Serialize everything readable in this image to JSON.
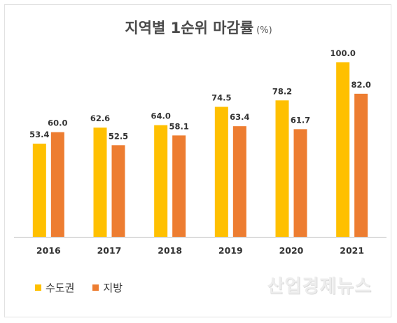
{
  "chart_data": {
    "type": "bar",
    "title": "지역별 1순위 마감률",
    "unit_label": "(%)",
    "categories": [
      "2016",
      "2017",
      "2018",
      "2019",
      "2020",
      "2021"
    ],
    "series": [
      {
        "name": "수도권",
        "color": "#FFC000",
        "values": [
          53.4,
          62.6,
          64.0,
          74.5,
          78.2,
          100.0
        ]
      },
      {
        "name": "지방",
        "color": "#ED7D31",
        "values": [
          60.0,
          52.5,
          58.1,
          63.4,
          61.7,
          82.0
        ]
      }
    ],
    "value_labels": [
      [
        "53.4",
        "62.6",
        "64.0",
        "74.5",
        "78.2",
        "100.0"
      ],
      [
        "60.0",
        "52.5",
        "58.1",
        "63.4",
        "61.7",
        "82.0"
      ]
    ],
    "ylim": [
      0,
      100
    ],
    "grid": false,
    "legend_position": "bottom-left"
  },
  "legend": {
    "items": [
      {
        "label": "수도권",
        "color": "#FFC000"
      },
      {
        "label": "지방",
        "color": "#ED7D31"
      }
    ]
  },
  "watermark": "산업경제뉴스"
}
